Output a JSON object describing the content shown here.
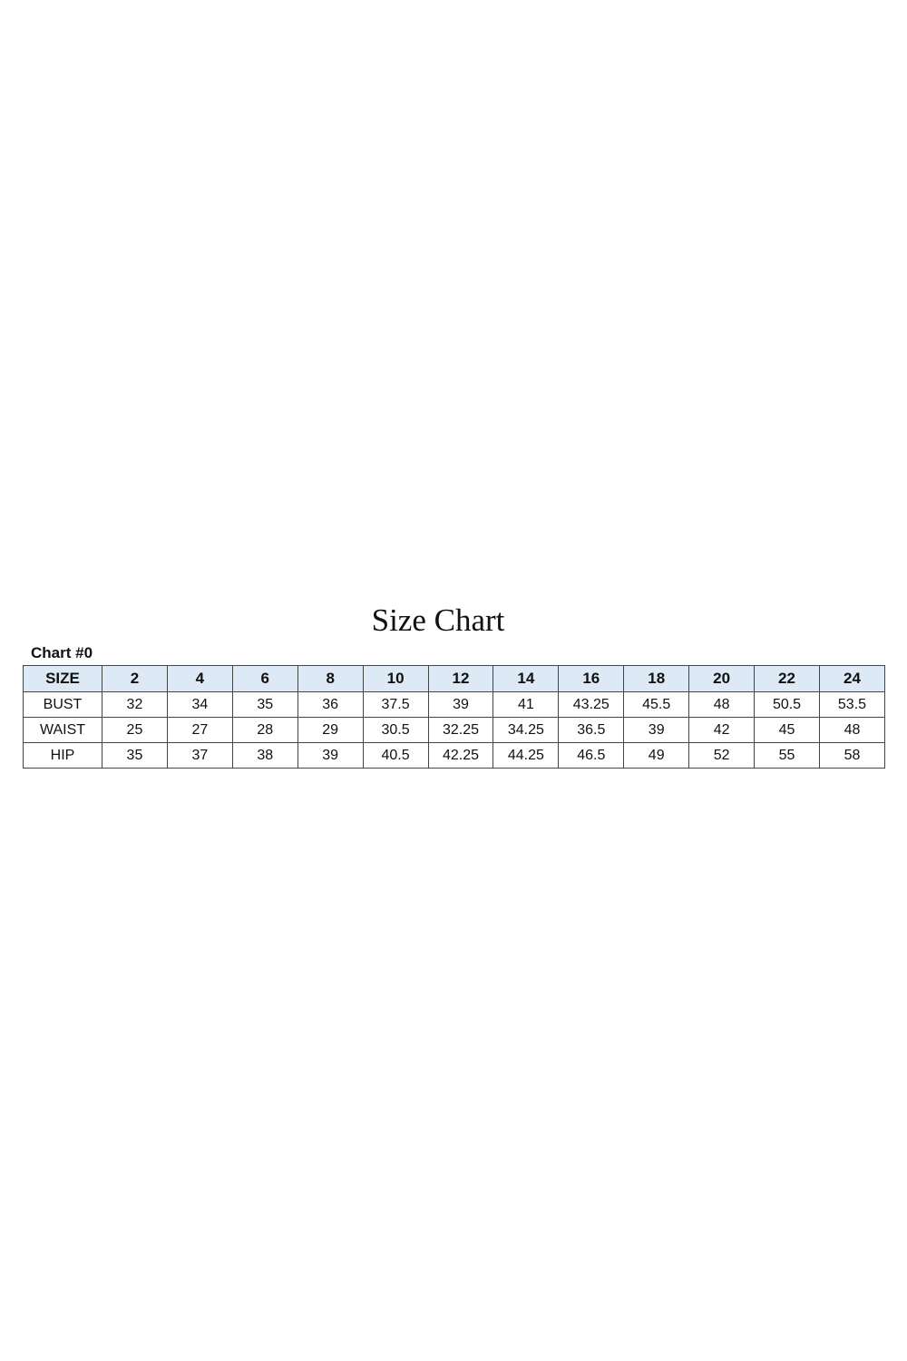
{
  "title": "Size Chart",
  "subtitle": "Chart #0",
  "table": {
    "header_bg": "#dde9f5",
    "columns": [
      "SIZE",
      "2",
      "4",
      "6",
      "8",
      "10",
      "12",
      "14",
      "16",
      "18",
      "20",
      "22",
      "24"
    ],
    "rows": [
      {
        "label": "BUST",
        "values": [
          "32",
          "34",
          "35",
          "36",
          "37.5",
          "39",
          "41",
          "43.25",
          "45.5",
          "48",
          "50.5",
          "53.5"
        ]
      },
      {
        "label": "WAIST",
        "values": [
          "25",
          "27",
          "28",
          "29",
          "30.5",
          "32.25",
          "34.25",
          "36.5",
          "39",
          "42",
          "45",
          "48"
        ]
      },
      {
        "label": "HIP",
        "values": [
          "35",
          "37",
          "38",
          "39",
          "40.5",
          "42.25",
          "44.25",
          "46.5",
          "49",
          "52",
          "55",
          "58"
        ]
      }
    ]
  }
}
